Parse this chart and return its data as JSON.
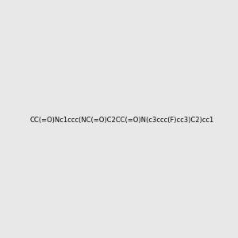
{
  "smiles": "CC(=O)Nc1ccc(NC(=O)C2CC(=O)N(c3ccc(F)cc3)C2)cc1",
  "image_size": 300,
  "background_color": "#e8e8e8",
  "title": ""
}
